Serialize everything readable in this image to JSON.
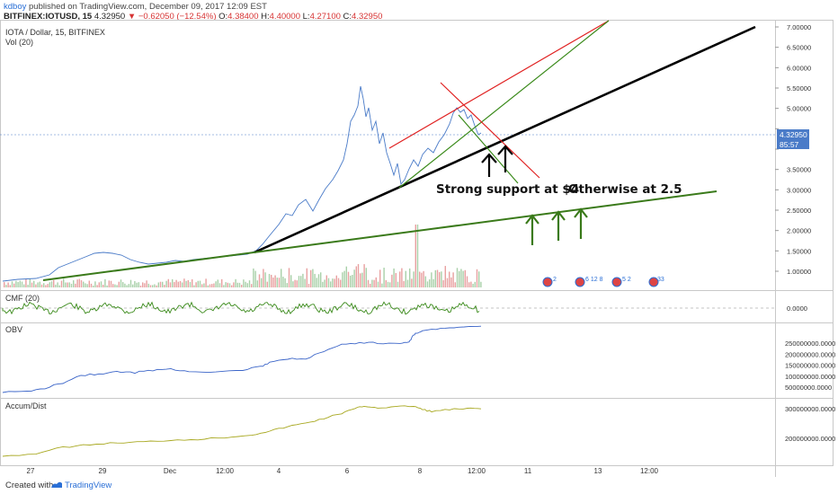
{
  "header": {
    "publisher": "kdboy",
    "published_text": "published on TradingView.com, December 09, 2017 12:09 EST",
    "symbol": "BITFINEX:IOTUSD, 15",
    "last": "4.32950",
    "change": "−0.62050 (−12.54%)",
    "open_label": "O:",
    "open": "4.38400",
    "high_label": "H:",
    "high": "4.40000",
    "low_label": "L:",
    "low": "4.27100",
    "close_label": "C:",
    "close": "4.32950"
  },
  "main_panel": {
    "title": "IOTA / Dollar, 15, BITFINEX",
    "volume_label": "Vol (20)",
    "y_ticks": [
      "7.00000",
      "6.50000",
      "6.00000",
      "5.50000",
      "5.00000",
      "4.50000",
      "4.00000",
      "3.50000",
      "3.00000",
      "2.50000",
      "2.00000",
      "1.50000",
      "1.00000"
    ],
    "price_badge": "4.32950",
    "time_badge": "85:57",
    "annotation_support": "Strong support at $4",
    "annotation_otherwise": "Otherwise at 2.5",
    "event_badges": [
      "2",
      "6 12 8",
      "5 2",
      "33"
    ]
  },
  "cmf_panel": {
    "label": "CMF (20)",
    "y_ticks": [
      "0.0000"
    ]
  },
  "obv_panel": {
    "label": "OBV",
    "y_ticks": [
      "250000000.0000",
      "200000000.0000",
      "150000000.0000",
      "100000000.0000",
      "50000000.0000"
    ]
  },
  "ad_panel": {
    "label": "Accum/Dist",
    "y_ticks": [
      "300000000.0000",
      "200000000.0000"
    ]
  },
  "x_axis": {
    "ticks": [
      "27",
      "29",
      "Dec",
      "12:00",
      "4",
      "6",
      "8",
      "12:00",
      "11",
      "13",
      "12:00"
    ]
  },
  "footer": {
    "created_with": "Created with",
    "brand": "TradingView"
  },
  "colors": {
    "price_line": "#4a7bc8",
    "trend_black": "#000000",
    "trend_green": "#3a7a1a",
    "channel_red": "#e02020",
    "channel_green": "#3a8a1a",
    "cmf_line": "#3a8a1a",
    "obv_line": "#3a64c8",
    "ad_line": "#a8a820",
    "badge_blue": "#2a6fd6"
  },
  "chart_data": [
    {
      "type": "line",
      "panel": "price",
      "x": [
        "27",
        "29",
        "Dec",
        "12:00",
        "4",
        "6",
        "8",
        "12:00"
      ],
      "y_range": [
        0.5,
        7.0
      ],
      "series": [
        {
          "points": [
            [
              "Nov 26",
              0.82
            ],
            [
              "Nov 27",
              0.9
            ],
            [
              "Nov 28",
              1.45
            ],
            [
              "Nov 29",
              1.3
            ],
            [
              "Nov 30",
              1.4
            ],
            [
              "Dec 1",
              1.42
            ],
            [
              "Dec 2",
              1.45
            ],
            [
              "Dec 3",
              1.55
            ],
            [
              "Dec 4",
              2.1
            ],
            [
              "Dec 5",
              3.2
            ],
            [
              "Dec 6",
              5.55
            ],
            [
              "Dec 7",
              3.8
            ],
            [
              "Dec 7 12:00",
              3.1
            ],
            [
              "Dec 8",
              4.2
            ],
            [
              "Dec 8 12:00",
              5.0
            ],
            [
              "Dec 9",
              4.33
            ]
          ]
        }
      ],
      "annotations": [
        "Strong support at $4",
        "Otherwise at 2.5"
      ]
    }
  ]
}
